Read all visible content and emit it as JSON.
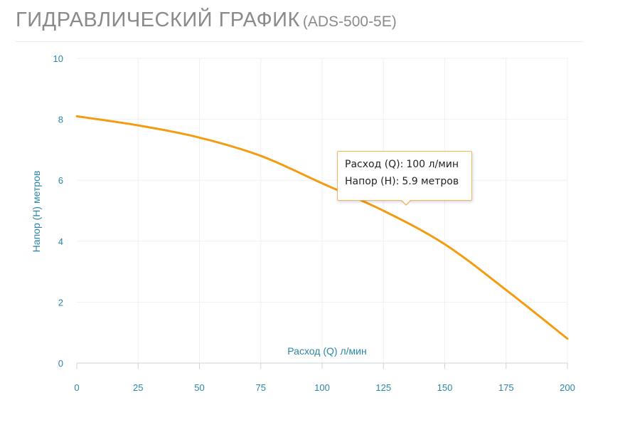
{
  "header": {
    "title": "ГИДРАВЛИЧЕСКИЙ ГРАФИК",
    "model": "(ADS-500-5E)"
  },
  "colors": {
    "series": "#f39c12",
    "axis_text": "#2a86a8",
    "title": "#8a8a8a",
    "grid": "#f0f0f0"
  },
  "chart_data": {
    "type": "line",
    "title": "ГИДРАВЛИЧЕСКИЙ ГРАФИК (ADS-500-5E)",
    "xlabel": "Расход (Q) л/мин",
    "ylabel": "Напор (H) метров",
    "xlim": [
      0,
      200
    ],
    "ylim": [
      0,
      10
    ],
    "xticks": [
      0,
      25,
      50,
      75,
      100,
      125,
      150,
      175,
      200
    ],
    "yticks": [
      0,
      2,
      4,
      6,
      8,
      10
    ],
    "grid": true,
    "legend": "none",
    "series": [
      {
        "x": [
          0,
          25,
          50,
          75,
          100,
          125,
          150,
          175,
          200
        ],
        "y": [
          8.1,
          7.8,
          7.4,
          6.8,
          5.9,
          5.0,
          3.9,
          2.4,
          0.8
        ]
      }
    ]
  },
  "tooltip": {
    "flow_label": "Расход (Q):",
    "flow_value": "100 л/мин",
    "head_label": "Напор (H):",
    "head_value": "5.9 метров"
  }
}
